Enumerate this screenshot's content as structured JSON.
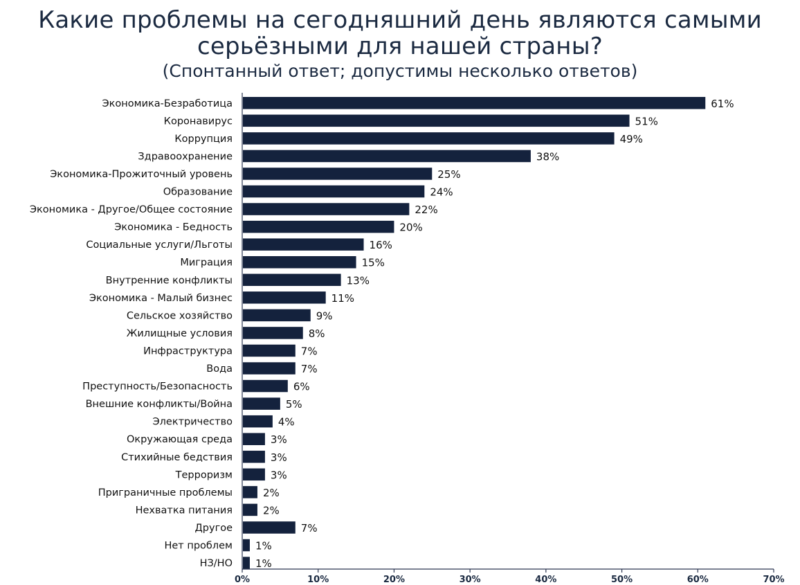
{
  "title": {
    "line1": "Какие проблемы на сегодняшний день являются самыми",
    "line2": "серьёзными для нашей страны?",
    "subtitle": "(Спонтанный ответ; допустимы несколько ответов)"
  },
  "colors": {
    "bar": "#14223d",
    "axis": "#2a3550",
    "title": "#1b2a41"
  },
  "chart_data": {
    "type": "bar",
    "orientation": "horizontal",
    "title": "Какие проблемы на сегодняшний день являются самыми серьёзными для нашей страны?",
    "subtitle": "(Спонтанный ответ; допустимы несколько ответов)",
    "categories": [
      "Экономика-Безработица",
      "Коронавирус",
      "Коррупция",
      "Здравоохранение",
      "Экономика-Прожиточный уровень",
      "Образование",
      "Экономика - Другое/Общее состояние",
      "Экономика - Бедность",
      "Социальные услуги/Льготы",
      "Миграция",
      "Внутренние конфликты",
      "Экономика - Малый бизнес",
      "Сельское хозяйство",
      "Жилищные условия",
      "Инфраструктура",
      "Вода",
      "Преступность/Безопасность",
      "Внешние конфликты/Война",
      "Электричество",
      "Окружающая среда",
      "Стихийные бедствия",
      "Терроризм",
      "Приграничные проблемы",
      "Нехватка питания",
      "Другое",
      "Нет проблем",
      "НЗ/НО"
    ],
    "values": [
      61,
      51,
      49,
      38,
      25,
      24,
      22,
      20,
      16,
      15,
      13,
      11,
      9,
      8,
      7,
      7,
      6,
      5,
      4,
      3,
      3,
      3,
      2,
      2,
      7,
      1,
      1
    ],
    "value_labels": [
      "61%",
      "51%",
      "49%",
      "38%",
      "25%",
      "24%",
      "22%",
      "20%",
      "16%",
      "15%",
      "13%",
      "11%",
      "9%",
      "8%",
      "7%",
      "7%",
      "6%",
      "5%",
      "4%",
      "3%",
      "3%",
      "3%",
      "2%",
      "2%",
      "7%",
      "1%",
      "1%"
    ],
    "xlim": [
      0,
      70
    ],
    "xticks": [
      "0%",
      "10%",
      "20%",
      "30%",
      "40%",
      "50%",
      "60%",
      "70%"
    ],
    "xlabel": "",
    "ylabel": "",
    "grid": false,
    "legend": "none"
  }
}
